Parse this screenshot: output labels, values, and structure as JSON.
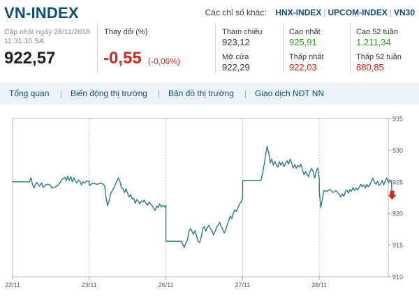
{
  "header": {
    "title": "VN-INDEX",
    "others_label": "Các chỉ số khác:",
    "others_links": [
      "HNX-INDEX",
      "UPCOM-INDEX",
      "VN30"
    ]
  },
  "summary": {
    "updated_label": "Cập nhật ngày 28/11/2018",
    "updated_time": "11:31:10 SA",
    "price": "922,57",
    "change_label": "Thay đổi (%)",
    "change_value": "-0,55",
    "change_pct": "(-0,06%)"
  },
  "stats": {
    "reference": {
      "label": "Tham chiếu",
      "value": "923,12",
      "color": "#333333"
    },
    "open": {
      "label": "Mở cửa",
      "value": "922,29",
      "color": "#333333"
    },
    "high": {
      "label": "Cao nhất",
      "value": "925,91",
      "color": "#23a61b"
    },
    "low": {
      "label": "Thấp nhất",
      "value": "922,03",
      "color": "#d4221f"
    },
    "high52": {
      "label": "Cao 52 tuần",
      "value": "1.211,34",
      "color": "#23a61b"
    },
    "low52": {
      "label": "Thấp 52 tuần",
      "value": "880,85",
      "color": "#d4221f"
    }
  },
  "tabs": [
    "Tổng quan",
    "Biến động thị trường",
    "Bản đồ thị trường",
    "Giao dịch NĐT NN"
  ],
  "colors": {
    "accent": "#134c72",
    "line": "#2e7a80",
    "down": "#cc2a22",
    "up": "#23a61b"
  },
  "chart_data": {
    "type": "line",
    "ylim": [
      910,
      935
    ],
    "yticks": [
      935,
      930,
      925,
      920,
      915,
      910
    ],
    "xlabels": [
      "22/11",
      "23/11",
      "26/11",
      "27/11",
      "28/11"
    ],
    "grid": "vertical dashed separators between days",
    "last_marker": "down-arrow",
    "series": [
      {
        "values": [
          [
            0.0,
            925.0
          ],
          [
            0.22,
            925.0
          ],
          [
            0.24,
            925.6
          ],
          [
            0.26,
            924.6
          ],
          [
            0.28,
            924.0
          ],
          [
            0.3,
            924.6
          ],
          [
            0.32,
            924.9
          ],
          [
            0.35,
            924.3
          ],
          [
            0.38,
            924.8
          ],
          [
            0.4,
            924.1
          ],
          [
            0.44,
            924.6
          ],
          [
            0.48,
            924.6
          ],
          [
            0.52,
            924.0
          ],
          [
            0.56,
            924.2
          ],
          [
            0.6,
            924.5
          ],
          [
            0.64,
            925.3
          ],
          [
            0.68,
            925.7
          ],
          [
            0.7,
            925.2
          ],
          [
            0.72,
            925.9
          ],
          [
            0.74,
            925.2
          ],
          [
            0.76,
            925.8
          ],
          [
            0.78,
            925.0
          ],
          [
            0.8,
            925.6
          ],
          [
            0.82,
            925.1
          ],
          [
            0.84,
            924.8
          ],
          [
            0.86,
            925.3
          ],
          [
            0.88,
            925.1
          ],
          [
            0.9,
            924.5
          ],
          [
            0.92,
            925.0
          ],
          [
            0.94,
            924.8
          ],
          [
            0.96,
            925.1
          ],
          [
            1.0,
            925.1
          ],
          [
            1.0,
            924.4
          ],
          [
            1.05,
            924.8
          ],
          [
            1.1,
            924.6
          ],
          [
            1.16,
            924.8
          ],
          [
            1.2,
            924.4
          ],
          [
            1.22,
            922.4
          ],
          [
            1.24,
            921.2
          ],
          [
            1.26,
            922.0
          ],
          [
            1.28,
            923.1
          ],
          [
            1.3,
            923.6
          ],
          [
            1.32,
            924.0
          ],
          [
            1.34,
            924.6
          ],
          [
            1.36,
            925.1
          ],
          [
            1.38,
            925.6
          ],
          [
            1.4,
            925.1
          ],
          [
            1.42,
            924.0
          ],
          [
            1.44,
            923.9
          ],
          [
            1.46,
            923.3
          ],
          [
            1.48,
            923.9
          ],
          [
            1.5,
            923.2
          ],
          [
            1.52,
            922.6
          ],
          [
            1.54,
            923.0
          ],
          [
            1.56,
            922.3
          ],
          [
            1.58,
            922.4
          ],
          [
            1.6,
            921.6
          ],
          [
            1.62,
            922.2
          ],
          [
            1.64,
            921.9
          ],
          [
            1.66,
            921.5
          ],
          [
            1.68,
            922.0
          ],
          [
            1.7,
            921.8
          ],
          [
            1.72,
            922.1
          ],
          [
            1.74,
            921.6
          ],
          [
            1.76,
            921.3
          ],
          [
            1.78,
            921.8
          ],
          [
            1.8,
            921.5
          ],
          [
            1.82,
            921.3
          ],
          [
            1.84,
            920.8
          ],
          [
            1.86,
            920.5
          ],
          [
            1.88,
            921.2
          ],
          [
            1.9,
            920.9
          ],
          [
            1.92,
            921.5
          ],
          [
            1.94,
            921.0
          ],
          [
            1.96,
            921.3
          ],
          [
            1.98,
            921.0
          ],
          [
            2.0,
            921.3
          ],
          [
            2.0,
            915.6
          ],
          [
            2.1,
            915.6
          ],
          [
            2.2,
            915.6
          ],
          [
            2.22,
            915.1
          ],
          [
            2.24,
            914.6
          ],
          [
            2.26,
            915.3
          ],
          [
            2.28,
            915.7
          ],
          [
            2.3,
            917.1
          ],
          [
            2.32,
            917.6
          ],
          [
            2.34,
            917.2
          ],
          [
            2.36,
            916.7
          ],
          [
            2.38,
            917.3
          ],
          [
            2.4,
            916.4
          ],
          [
            2.42,
            915.6
          ],
          [
            2.44,
            915.4
          ],
          [
            2.46,
            916.2
          ],
          [
            2.48,
            917.6
          ],
          [
            2.5,
            917.9
          ],
          [
            2.52,
            917.2
          ],
          [
            2.54,
            917.8
          ],
          [
            2.56,
            918.1
          ],
          [
            2.58,
            917.6
          ],
          [
            2.6,
            917.3
          ],
          [
            2.62,
            916.6
          ],
          [
            2.64,
            917.1
          ],
          [
            2.66,
            917.8
          ],
          [
            2.68,
            918.1
          ],
          [
            2.7,
            918.6
          ],
          [
            2.72,
            918.0
          ],
          [
            2.74,
            917.5
          ],
          [
            2.76,
            916.9
          ],
          [
            2.78,
            917.4
          ],
          [
            2.8,
            918.2
          ],
          [
            2.82,
            918.9
          ],
          [
            2.84,
            919.6
          ],
          [
            2.86,
            919.2
          ],
          [
            2.88,
            920.0
          ],
          [
            2.9,
            920.6
          ],
          [
            2.92,
            920.3
          ],
          [
            2.94,
            920.9
          ],
          [
            2.96,
            921.5
          ],
          [
            2.98,
            921.8
          ],
          [
            3.0,
            922.4
          ],
          [
            3.0,
            925.2
          ],
          [
            3.1,
            925.2
          ],
          [
            3.2,
            925.2
          ],
          [
            3.24,
            925.2
          ],
          [
            3.26,
            926.3
          ],
          [
            3.28,
            927.6
          ],
          [
            3.3,
            929.2
          ],
          [
            3.32,
            930.6
          ],
          [
            3.34,
            929.6
          ],
          [
            3.36,
            928.0
          ],
          [
            3.38,
            928.6
          ],
          [
            3.4,
            927.6
          ],
          [
            3.42,
            928.2
          ],
          [
            3.44,
            927.7
          ],
          [
            3.46,
            927.3
          ],
          [
            3.48,
            928.2
          ],
          [
            3.5,
            927.6
          ],
          [
            3.52,
            928.1
          ],
          [
            3.54,
            927.4
          ],
          [
            3.56,
            927.9
          ],
          [
            3.58,
            928.3
          ],
          [
            3.6,
            927.8
          ],
          [
            3.62,
            928.6
          ],
          [
            3.64,
            927.9
          ],
          [
            3.66,
            927.2
          ],
          [
            3.68,
            927.7
          ],
          [
            3.7,
            927.1
          ],
          [
            3.72,
            927.6
          ],
          [
            3.74,
            927.3
          ],
          [
            3.76,
            927.8
          ],
          [
            3.78,
            926.9
          ],
          [
            3.8,
            926.1
          ],
          [
            3.82,
            926.6
          ],
          [
            3.84,
            926.2
          ],
          [
            3.86,
            925.8
          ],
          [
            3.88,
            926.6
          ],
          [
            3.9,
            927.1
          ],
          [
            3.92,
            926.6
          ],
          [
            3.94,
            925.6
          ],
          [
            3.96,
            926.6
          ],
          [
            3.98,
            927.2
          ],
          [
            4.0,
            925.4
          ],
          [
            4.0,
            923.6
          ],
          [
            4.02,
            920.9
          ],
          [
            4.04,
            922.3
          ],
          [
            4.06,
            923.6
          ],
          [
            4.1,
            923.5
          ],
          [
            4.14,
            923.8
          ],
          [
            4.18,
            923.3
          ],
          [
            4.22,
            923.6
          ],
          [
            4.26,
            923.0
          ],
          [
            4.28,
            922.6
          ],
          [
            4.3,
            923.1
          ],
          [
            4.32,
            922.7
          ],
          [
            4.34,
            923.4
          ],
          [
            4.36,
            923.7
          ],
          [
            4.38,
            923.2
          ],
          [
            4.4,
            923.8
          ],
          [
            4.42,
            923.5
          ],
          [
            4.44,
            924.1
          ],
          [
            4.46,
            923.6
          ],
          [
            4.48,
            924.0
          ],
          [
            4.5,
            923.7
          ],
          [
            4.52,
            924.1
          ],
          [
            4.54,
            924.6
          ],
          [
            4.56,
            924.2
          ],
          [
            4.58,
            924.5
          ],
          [
            4.6,
            924.0
          ],
          [
            4.62,
            924.6
          ],
          [
            4.64,
            924.2
          ],
          [
            4.66,
            924.5
          ],
          [
            4.68,
            925.1
          ],
          [
            4.7,
            925.6
          ],
          [
            4.72,
            924.9
          ],
          [
            4.74,
            924.6
          ],
          [
            4.76,
            925.1
          ],
          [
            4.78,
            924.4
          ],
          [
            4.8,
            924.7
          ],
          [
            4.82,
            925.2
          ],
          [
            4.84,
            924.5
          ],
          [
            4.86,
            925.1
          ],
          [
            4.88,
            925.6
          ],
          [
            4.9,
            924.9
          ],
          [
            4.92,
            925.3
          ],
          [
            4.94,
            925.1
          ],
          [
            4.95,
            922.6
          ]
        ]
      }
    ]
  }
}
